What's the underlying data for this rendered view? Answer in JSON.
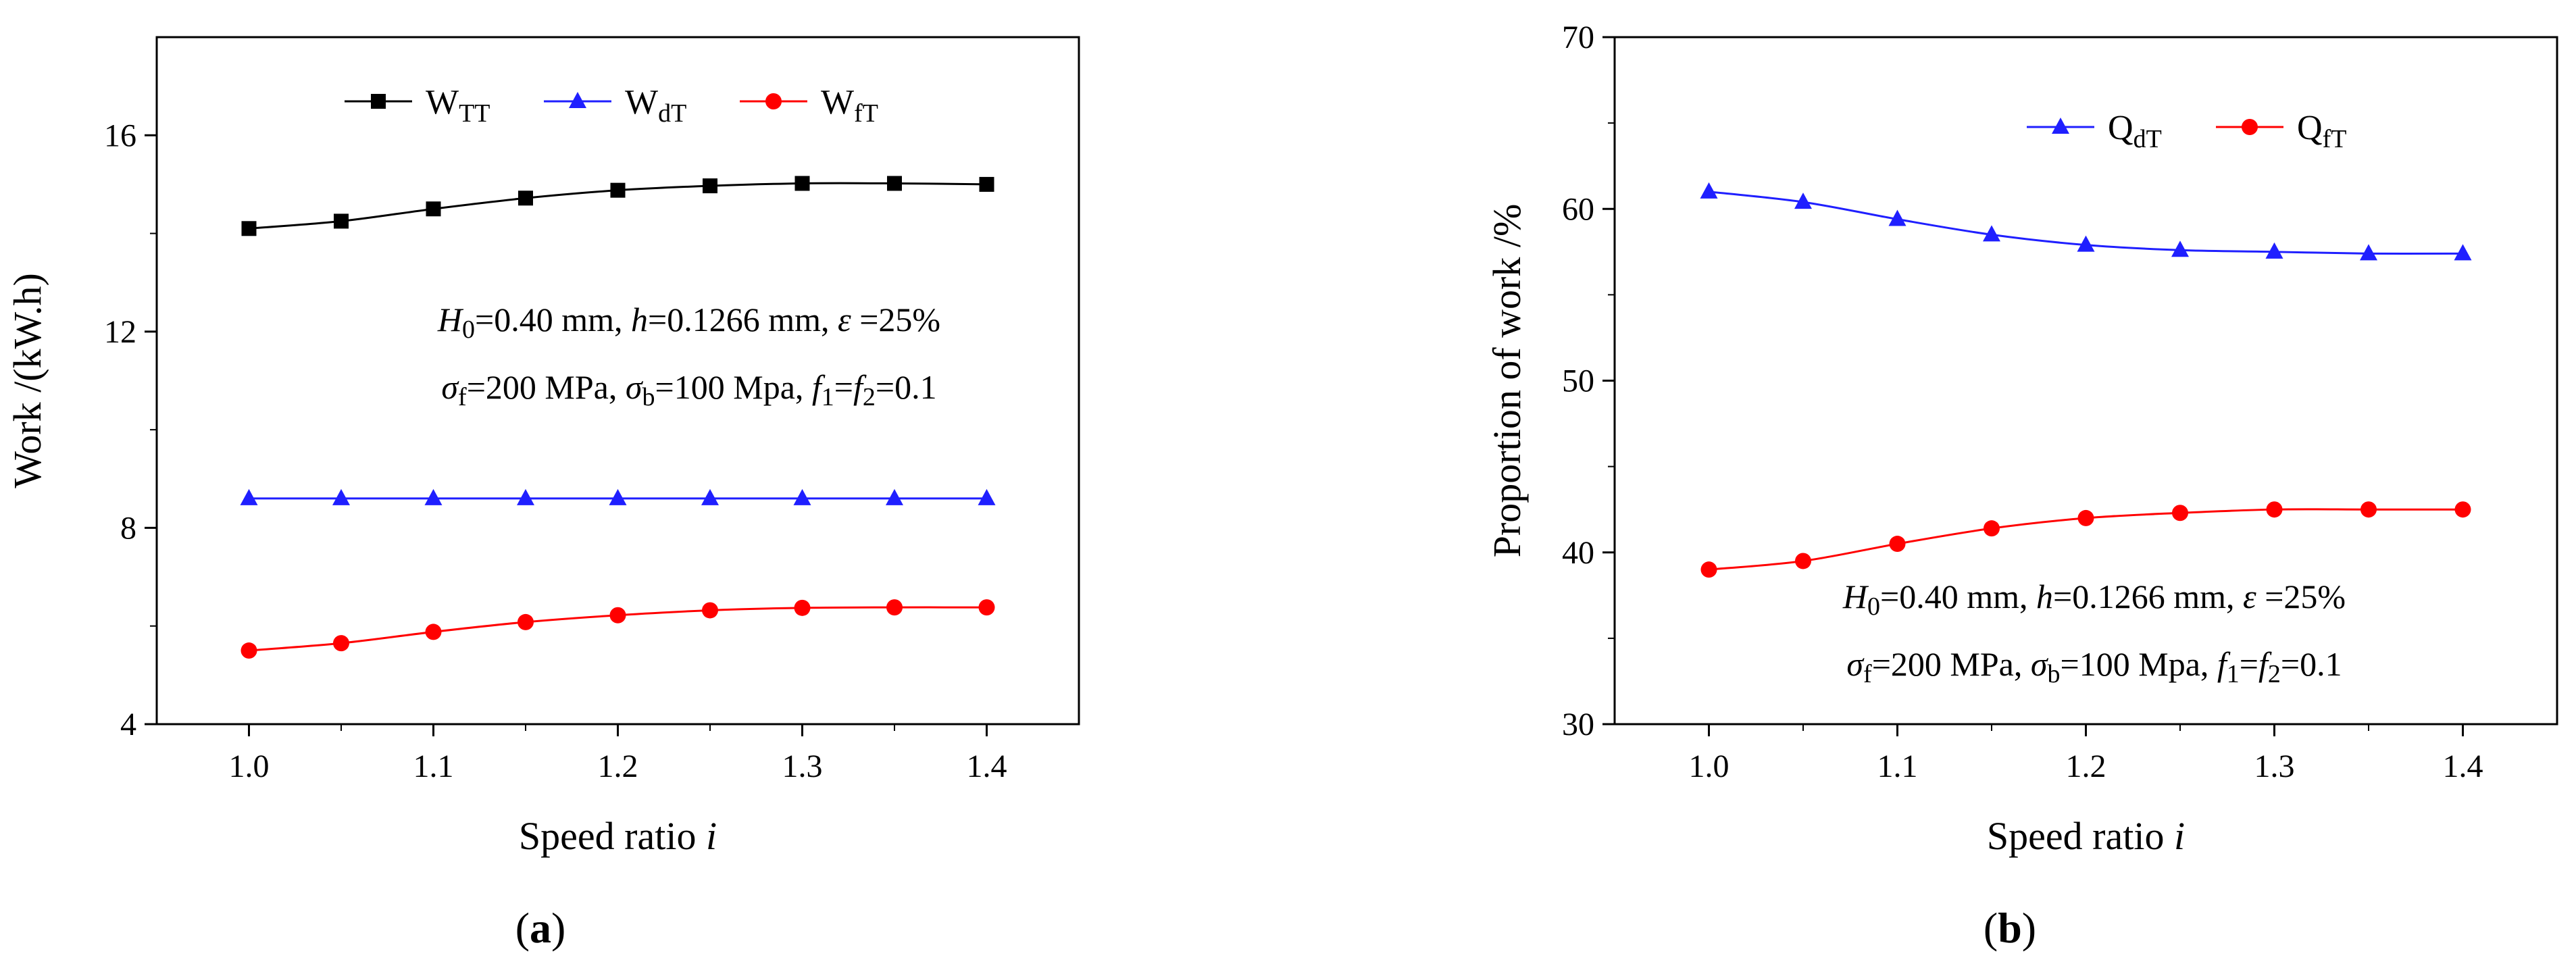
{
  "chart_data": [
    {
      "type": "line",
      "panel_label": "a",
      "xlabel": "Speed ratio",
      "xlabel_var": "i",
      "ylabel": "Work /(kW.h)",
      "xlim": [
        0.95,
        1.45
      ],
      "ylim": [
        4,
        18
      ],
      "x_ticks": [
        1.0,
        1.1,
        1.2,
        1.3,
        1.4
      ],
      "x_tick_labels": [
        "1.0",
        "1.1",
        "1.2",
        "1.3",
        "1.4"
      ],
      "y_ticks": [
        4,
        8,
        12,
        16
      ],
      "y_tick_labels": [
        "4",
        "8",
        "12",
        "16"
      ],
      "x": [
        1.0,
        1.05,
        1.1,
        1.15,
        1.2,
        1.25,
        1.3,
        1.35,
        1.4
      ],
      "series": [
        {
          "name": "W",
          "sub": "TT",
          "color": "#000000",
          "marker": "square",
          "values": [
            14.1,
            14.25,
            14.5,
            14.72,
            14.88,
            14.97,
            15.02,
            15.02,
            15.0
          ]
        },
        {
          "name": "W",
          "sub": "dT",
          "color": "#1f1fff",
          "marker": "triangle",
          "values": [
            8.6,
            8.6,
            8.6,
            8.6,
            8.6,
            8.6,
            8.6,
            8.6,
            8.6
          ]
        },
        {
          "name": "W",
          "sub": "fT",
          "color": "#ff0000",
          "marker": "circle",
          "values": [
            5.5,
            5.65,
            5.88,
            6.08,
            6.22,
            6.32,
            6.37,
            6.38,
            6.38
          ]
        }
      ],
      "legend_position": "top",
      "annotation": {
        "line1": [
          {
            "t": "H",
            "style": "italic"
          },
          {
            "t": "0",
            "style": "sub"
          },
          {
            "t": "=0.40 mm, "
          },
          {
            "t": "h",
            "style": "italic"
          },
          {
            "t": "=0.1266 mm, "
          },
          {
            "t": "ε",
            "style": "italic"
          },
          {
            "t": " =25%"
          }
        ],
        "line2": [
          {
            "t": "σ",
            "style": "italic"
          },
          {
            "t": "f",
            "style": "sub"
          },
          {
            "t": "=200 MPa, "
          },
          {
            "t": "σ",
            "style": "italic"
          },
          {
            "t": "b",
            "style": "sub"
          },
          {
            "t": "=100 Mpa, "
          },
          {
            "t": "f",
            "style": "italic"
          },
          {
            "t": "1",
            "style": "sub"
          },
          {
            "t": "="
          },
          {
            "t": "f",
            "style": "italic"
          },
          {
            "t": "2",
            "style": "sub"
          },
          {
            "t": "=0.1"
          }
        ]
      }
    },
    {
      "type": "line",
      "panel_label": "b",
      "xlabel": "Speed ratio",
      "xlabel_var": "i",
      "ylabel": "Proportion of work /%",
      "xlim": [
        0.95,
        1.45
      ],
      "ylim": [
        30,
        70
      ],
      "x_ticks": [
        1.0,
        1.1,
        1.2,
        1.3,
        1.4
      ],
      "x_tick_labels": [
        "1.0",
        "1.1",
        "1.2",
        "1.3",
        "1.4"
      ],
      "y_ticks": [
        30,
        40,
        50,
        60,
        70
      ],
      "y_tick_labels": [
        "30",
        "40",
        "50",
        "60",
        "70"
      ],
      "x": [
        1.0,
        1.05,
        1.1,
        1.15,
        1.2,
        1.25,
        1.3,
        1.35,
        1.4
      ],
      "series": [
        {
          "name": "Q",
          "sub": "dT",
          "color": "#1f1fff",
          "marker": "triangle",
          "values": [
            61.0,
            60.4,
            59.4,
            58.5,
            57.9,
            57.6,
            57.5,
            57.4,
            57.4
          ]
        },
        {
          "name": "Q",
          "sub": "fT",
          "color": "#ff0000",
          "marker": "circle",
          "values": [
            39.0,
            39.5,
            40.5,
            41.4,
            42.0,
            42.3,
            42.5,
            42.5,
            42.5
          ]
        }
      ],
      "legend_position": "top-right",
      "annotation": {
        "line1": [
          {
            "t": "H",
            "style": "italic"
          },
          {
            "t": "0",
            "style": "sub"
          },
          {
            "t": "=0.40 mm, "
          },
          {
            "t": "h",
            "style": "italic"
          },
          {
            "t": "=0.1266 mm, "
          },
          {
            "t": "ε",
            "style": "italic"
          },
          {
            "t": " =25%"
          }
        ],
        "line2": [
          {
            "t": "σ",
            "style": "italic"
          },
          {
            "t": "f",
            "style": "sub"
          },
          {
            "t": "=200 MPa, "
          },
          {
            "t": "σ",
            "style": "italic"
          },
          {
            "t": "b",
            "style": "sub"
          },
          {
            "t": "=100 Mpa, "
          },
          {
            "t": "f",
            "style": "italic"
          },
          {
            "t": "1",
            "style": "sub"
          },
          {
            "t": "="
          },
          {
            "t": "f",
            "style": "italic"
          },
          {
            "t": "2",
            "style": "sub"
          },
          {
            "t": "=0.1"
          }
        ]
      }
    }
  ]
}
